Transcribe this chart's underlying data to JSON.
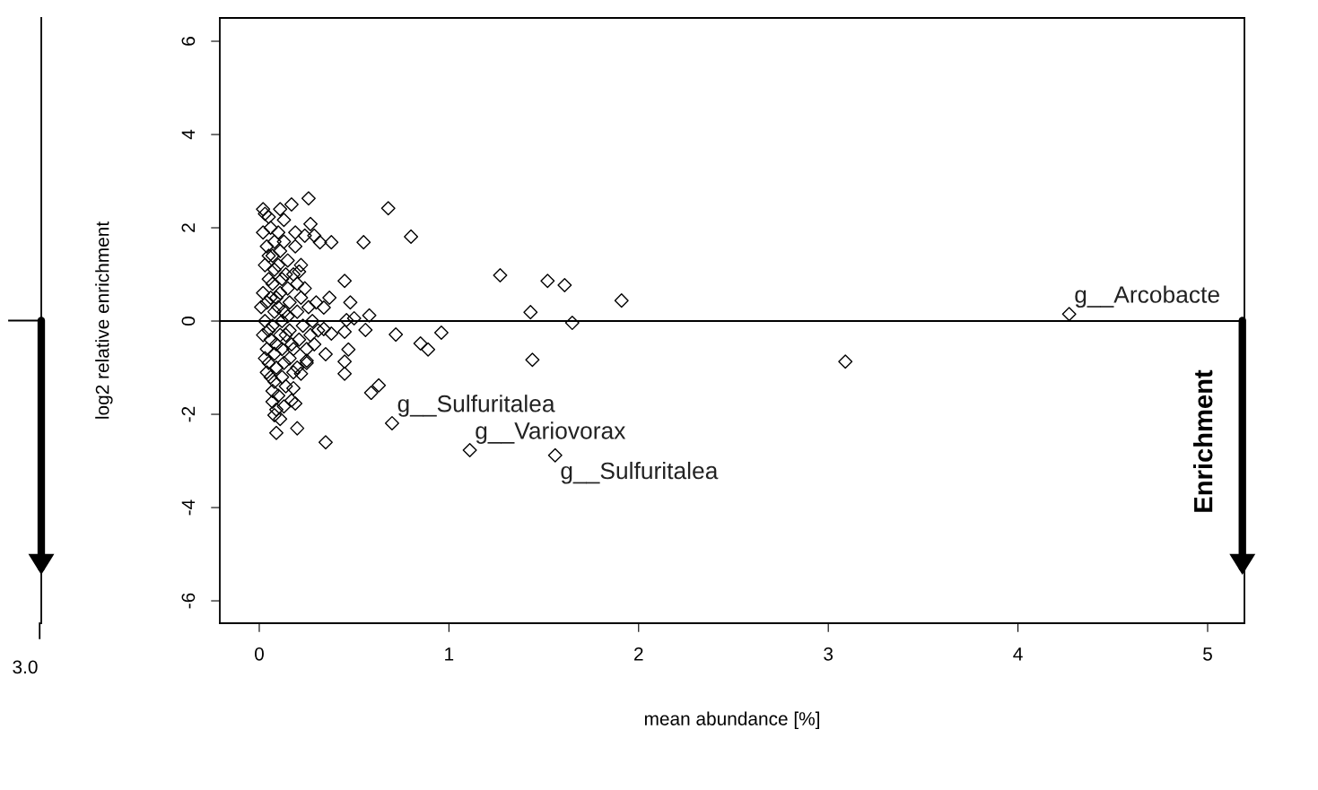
{
  "chart_data": [
    {
      "type": "other",
      "annotations": [
        "3.0"
      ]
    },
    {
      "type": "scatter",
      "xlabel": "mean abundance [%]",
      "ylabel": "log2 relative enrichment",
      "marker": "diamond",
      "grid": false,
      "xlim": [
        -0.208,
        5.194
      ],
      "ylim": [
        -6.48,
        6.5
      ],
      "xticks": [
        0,
        1,
        2,
        3,
        4,
        5
      ],
      "yticks": [
        -6,
        -4,
        -2,
        0,
        2,
        4,
        6
      ],
      "ref_lines": [
        {
          "axis": "y",
          "value": 0
        }
      ],
      "series": [
        {
          "color": "#000000",
          "x": [
            0.68,
            0.55,
            0.8,
            0.45,
            0.48,
            0.58,
            0.5,
            0.46,
            0.56,
            0.45,
            0.72,
            0.85,
            0.89,
            0.96,
            0.47,
            0.45,
            0.45,
            0.63,
            0.59,
            0.7,
            1.11,
            1.56,
            1.27,
            1.52,
            1.61,
            1.91,
            1.43,
            1.65,
            1.44,
            3.09,
            4.27,
            0.26,
            0.17,
            0.11,
            0.02,
            0.05,
            0.27,
            0.13,
            0.32,
            0.38,
            0.24,
            0.29,
            0.21,
            0.37,
            0.34,
            0.34,
            0.38,
            0.35,
            0.25,
            0.22,
            0.18,
            0.19,
            0.07,
            0.13,
            0.11,
            0.08,
            0.09,
            0.2,
            0.35,
            0.02,
            0.04,
            0.03,
            0.05,
            0.02,
            0.01,
            0.03,
            0.02,
            0.04,
            0.05,
            0.06,
            0.07,
            0.06,
            0.08,
            0.07,
            0.08,
            0.07,
            0.06,
            0.08,
            0.07,
            0.06,
            0.08,
            0.09,
            0.08,
            0.1,
            0.09,
            0.1,
            0.11,
            0.1,
            0.12,
            0.11,
            0.1,
            0.12,
            0.11,
            0.12,
            0.13,
            0.12,
            0.14,
            0.13,
            0.15,
            0.14,
            0.15,
            0.16,
            0.15,
            0.16,
            0.17,
            0.16,
            0.18,
            0.17,
            0.19,
            0.2,
            0.2,
            0.21,
            0.2,
            0.22,
            0.23,
            0.24,
            0.25,
            0.26,
            0.27,
            0.28,
            0.29,
            0.3,
            0.31,
            0.03,
            0.05,
            0.04,
            0.05,
            0.03,
            0.04,
            0.09,
            0.09,
            0.13,
            0.14,
            0.18,
            0.18,
            0.22,
            0.25,
            0.19
          ],
          "values": [
            2.42,
            1.69,
            1.81,
            0.86,
            0.4,
            0.12,
            0.06,
            0.02,
            -0.19,
            -0.23,
            -0.29,
            -0.48,
            -0.61,
            -0.25,
            -0.61,
            -0.87,
            -1.13,
            -1.38,
            -1.54,
            -2.19,
            -2.77,
            -2.88,
            0.98,
            0.86,
            0.77,
            0.44,
            0.19,
            -0.04,
            -0.83,
            -0.87,
            0.15,
            2.63,
            2.5,
            2.4,
            2.4,
            2.23,
            2.08,
            2.17,
            1.69,
            1.69,
            1.83,
            1.83,
            1.06,
            0.5,
            0.29,
            -0.17,
            -0.27,
            -0.71,
            -0.85,
            -1.13,
            -1.44,
            -1.77,
            -1.73,
            -1.83,
            -2.1,
            -2.02,
            -2.4,
            -2.3,
            -2.6,
            1.9,
            1.6,
            1.2,
            0.9,
            0.6,
            0.3,
            0.0,
            -0.3,
            -0.6,
            -0.9,
            -1.2,
            -1.5,
            2.0,
            1.7,
            1.4,
            1.1,
            0.8,
            0.5,
            0.2,
            -0.1,
            -0.4,
            -0.7,
            -1.0,
            -1.3,
            -1.6,
            -1.9,
            1.9,
            1.5,
            1.2,
            0.9,
            0.6,
            0.3,
            0.0,
            -0.3,
            -0.6,
            -0.9,
            -1.2,
            -1.4,
            1.7,
            1.3,
            1.0,
            0.7,
            0.4,
            0.1,
            -0.2,
            -0.5,
            -0.8,
            -1.1,
            -1.7,
            1.6,
            0.8,
            0.2,
            -0.4,
            -1.0,
            0.5,
            -0.1,
            0.7,
            -0.6,
            0.3,
            -0.3,
            0.0,
            -0.5,
            0.4,
            -0.2,
            2.3,
            1.4,
            0.4,
            -0.2,
            -0.8,
            -1.1,
            0.5,
            -0.5,
            0.2,
            -0.3,
            1.0,
            -0.6,
            1.2,
            -0.9,
            1.9
          ]
        }
      ],
      "annotations": [
        {
          "text": "g__Sulfuritalea",
          "x": 0.7,
          "y": -2.19
        },
        {
          "text": "g__Variovorax",
          "x": 1.11,
          "y": -2.77
        },
        {
          "text": "g__Sulfuritalea",
          "x": 1.56,
          "y": -2.88
        },
        {
          "text": "g__Arcobacte",
          "x": 4.27,
          "y": 0.15
        },
        "Enrichment"
      ]
    }
  ]
}
